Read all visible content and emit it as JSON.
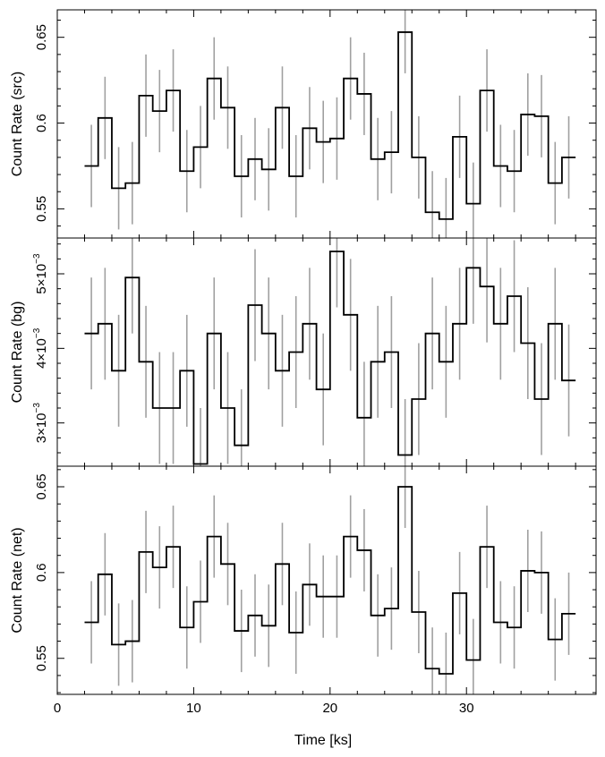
{
  "chart_data": [
    {
      "type": "line",
      "style": "step",
      "ylabel": "Count Rate (src)",
      "ylim": [
        0.533,
        0.666
      ],
      "yticks": [
        0.55,
        0.6,
        0.65
      ],
      "ytick_labels": [
        "0.55",
        "0.6",
        "0.65"
      ],
      "x": [
        2.5,
        3.5,
        4.5,
        5.5,
        6.5,
        7.5,
        8.5,
        9.5,
        10.5,
        11.5,
        12.5,
        13.5,
        14.5,
        15.5,
        16.5,
        17.5,
        18.5,
        19.5,
        20.5,
        21.5,
        22.5,
        23.5,
        24.5,
        25.5,
        26.5,
        27.5,
        28.5,
        29.5,
        30.5,
        31.5,
        32.5,
        33.5,
        34.5,
        35.5,
        36.5,
        37.5
      ],
      "values": [
        0.575,
        0.603,
        0.562,
        0.565,
        0.616,
        0.607,
        0.619,
        0.572,
        0.586,
        0.626,
        0.609,
        0.569,
        0.579,
        0.573,
        0.609,
        0.569,
        0.597,
        0.589,
        0.591,
        0.626,
        0.617,
        0.579,
        0.583,
        0.653,
        0.58,
        0.548,
        0.544,
        0.592,
        0.553,
        0.619,
        0.575,
        0.572,
        0.605,
        0.604,
        0.565,
        0.58
      ],
      "errors": [
        0.024,
        0.024,
        0.024,
        0.024,
        0.024,
        0.024,
        0.024,
        0.024,
        0.024,
        0.024,
        0.024,
        0.024,
        0.024,
        0.024,
        0.024,
        0.024,
        0.024,
        0.024,
        0.024,
        0.024,
        0.024,
        0.024,
        0.024,
        0.024,
        0.024,
        0.024,
        0.024,
        0.024,
        0.024,
        0.024,
        0.024,
        0.024,
        0.024,
        0.024,
        0.024,
        0.024
      ]
    },
    {
      "type": "line",
      "style": "step",
      "ylabel": "Count Rate (bg)",
      "ylim": [
        0.00242,
        0.00548
      ],
      "yticks": [
        0.003,
        0.004,
        0.005
      ],
      "ytick_labels": [
        [
          "3×10",
          "−3"
        ],
        [
          "4×10",
          "−3"
        ],
        [
          "5×10",
          "−3"
        ]
      ],
      "x": [
        2.5,
        3.5,
        4.5,
        5.5,
        6.5,
        7.5,
        8.5,
        9.5,
        10.5,
        11.5,
        12.5,
        13.5,
        14.5,
        15.5,
        16.5,
        17.5,
        18.5,
        19.5,
        20.5,
        21.5,
        22.5,
        23.5,
        24.5,
        25.5,
        26.5,
        27.5,
        28.5,
        29.5,
        30.5,
        31.5,
        32.5,
        33.5,
        34.5,
        35.5,
        36.5,
        37.5
      ],
      "values": [
        0.0042,
        0.00433,
        0.0037,
        0.00495,
        0.00382,
        0.0032,
        0.0032,
        0.0037,
        0.00245,
        0.0042,
        0.0032,
        0.0027,
        0.00458,
        0.0042,
        0.0037,
        0.00395,
        0.00433,
        0.00345,
        0.0053,
        0.00445,
        0.00307,
        0.00382,
        0.00395,
        0.00257,
        0.00332,
        0.0042,
        0.00382,
        0.00433,
        0.00508,
        0.00483,
        0.00433,
        0.0047,
        0.00407,
        0.00332,
        0.00433,
        0.00357
      ],
      "errors": [
        0.00075,
        0.00075,
        0.00075,
        0.00075,
        0.00075,
        0.00075,
        0.00075,
        0.00075,
        0.00075,
        0.00075,
        0.00075,
        0.00075,
        0.00075,
        0.00075,
        0.00075,
        0.00075,
        0.00075,
        0.00075,
        0.00075,
        0.00075,
        0.00075,
        0.00075,
        0.00075,
        0.00075,
        0.00075,
        0.00075,
        0.00075,
        0.00075,
        0.00075,
        0.00075,
        0.00075,
        0.00075,
        0.00075,
        0.00075,
        0.00075,
        0.00075
      ]
    },
    {
      "type": "line",
      "style": "step",
      "ylabel": "Count Rate (net)",
      "xlabel": "Time [ks]",
      "xlim": [
        0,
        39.5
      ],
      "xticks": [
        0,
        10,
        20,
        30
      ],
      "xtick_labels": [
        "0",
        "10",
        "20",
        "30"
      ],
      "ylim": [
        0.529,
        0.662
      ],
      "yticks": [
        0.55,
        0.6,
        0.65
      ],
      "ytick_labels": [
        "0.55",
        "0.6",
        "0.65"
      ],
      "x": [
        2.5,
        3.5,
        4.5,
        5.5,
        6.5,
        7.5,
        8.5,
        9.5,
        10.5,
        11.5,
        12.5,
        13.5,
        14.5,
        15.5,
        16.5,
        17.5,
        18.5,
        19.5,
        20.5,
        21.5,
        22.5,
        23.5,
        24.5,
        25.5,
        26.5,
        27.5,
        28.5,
        29.5,
        30.5,
        31.5,
        32.5,
        33.5,
        34.5,
        35.5,
        36.5,
        37.5
      ],
      "values": [
        0.571,
        0.599,
        0.558,
        0.56,
        0.612,
        0.603,
        0.615,
        0.568,
        0.583,
        0.621,
        0.605,
        0.566,
        0.575,
        0.569,
        0.605,
        0.565,
        0.593,
        0.586,
        0.586,
        0.621,
        0.613,
        0.575,
        0.579,
        0.65,
        0.577,
        0.544,
        0.541,
        0.588,
        0.549,
        0.615,
        0.571,
        0.568,
        0.601,
        0.6,
        0.561,
        0.576
      ],
      "errors": [
        0.024,
        0.024,
        0.024,
        0.024,
        0.024,
        0.024,
        0.024,
        0.024,
        0.024,
        0.024,
        0.024,
        0.024,
        0.024,
        0.024,
        0.024,
        0.024,
        0.024,
        0.024,
        0.024,
        0.024,
        0.024,
        0.024,
        0.024,
        0.024,
        0.024,
        0.024,
        0.024,
        0.024,
        0.024,
        0.024,
        0.024,
        0.024,
        0.024,
        0.024,
        0.024,
        0.024
      ]
    }
  ],
  "colors": {
    "step_line": "#000000",
    "error_bar": "#a0a0a0",
    "axes": "#000000"
  }
}
